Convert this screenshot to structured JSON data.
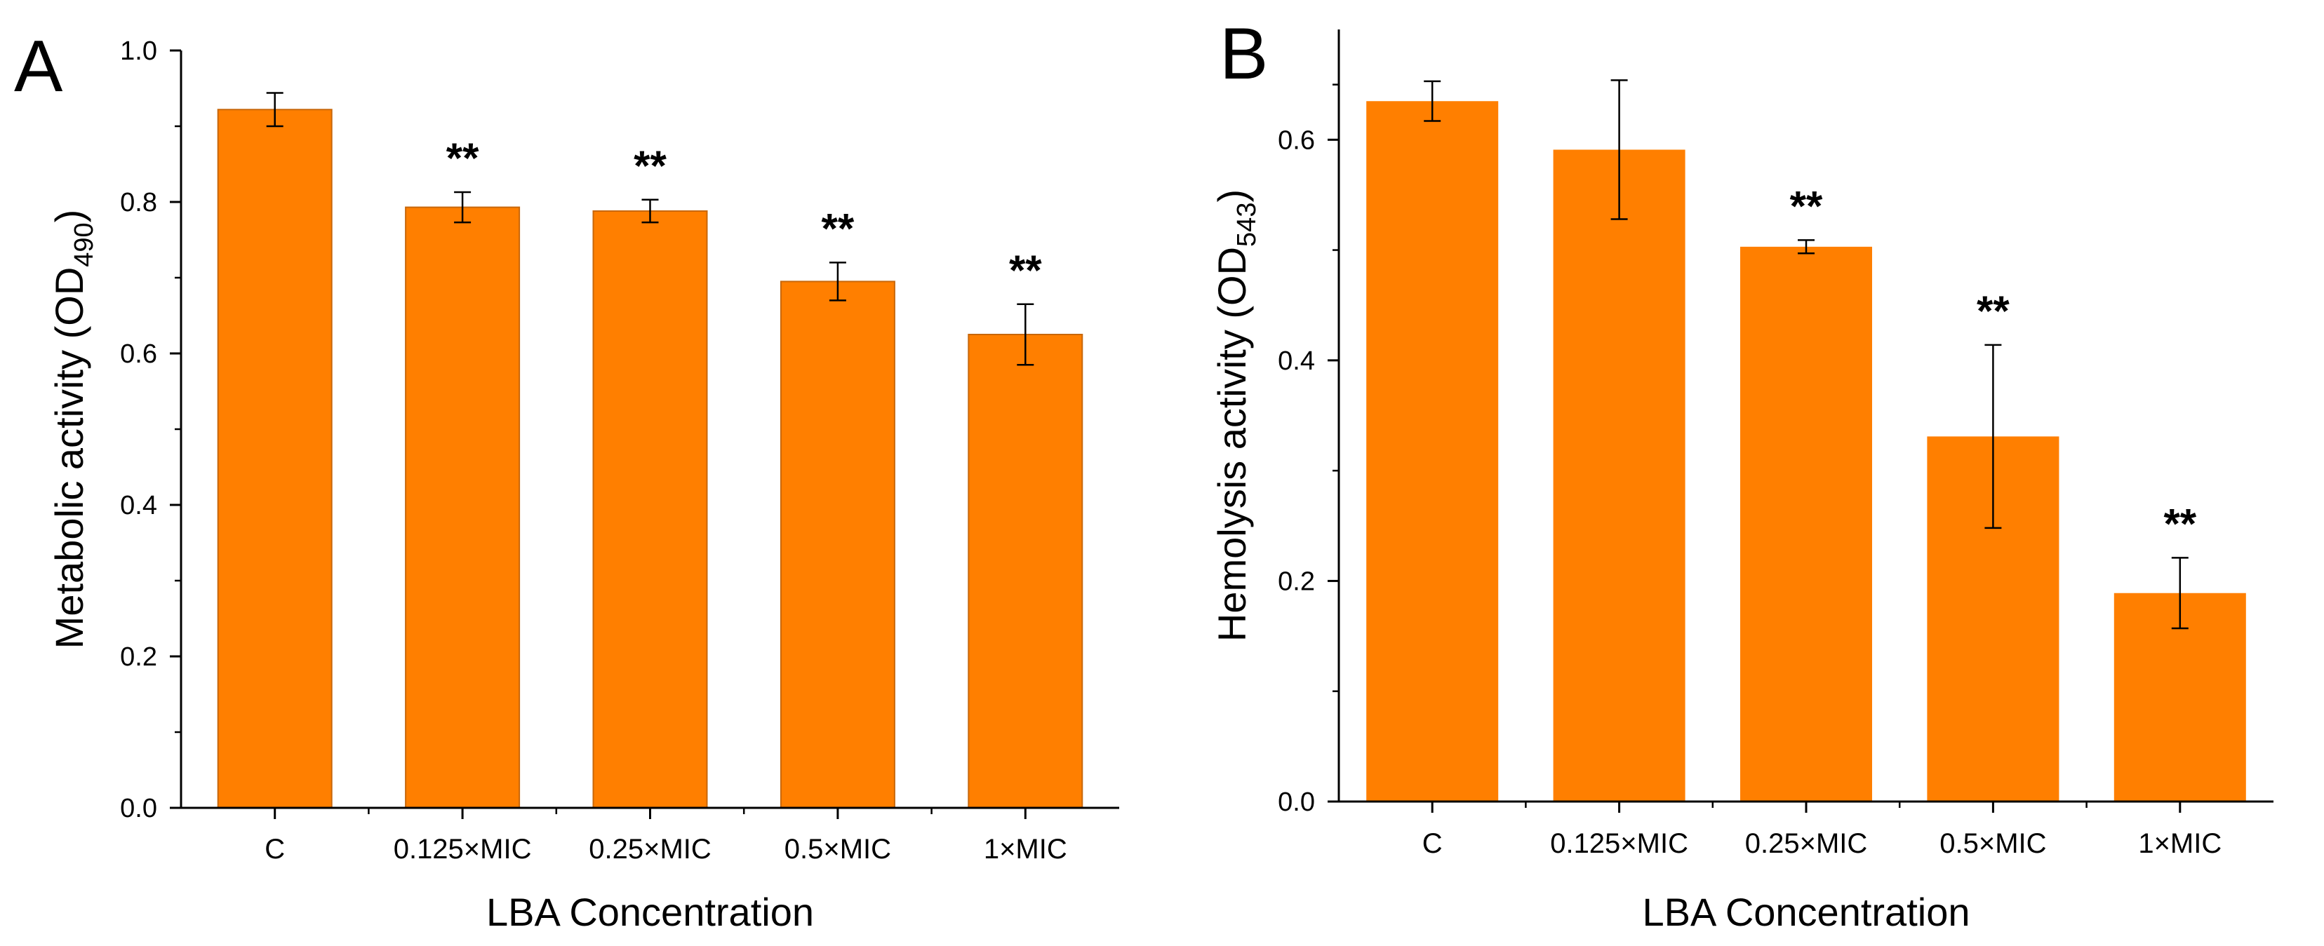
{
  "figure": {
    "background": "#ffffff",
    "bar_color": "#ff7f00",
    "bar_edge_color": "#c8670a"
  },
  "chart_data": [
    {
      "type": "bar",
      "panel_label": "A",
      "categories": [
        "C",
        "0.125×MIC",
        "0.25×MIC",
        "0.5×MIC",
        "1×MIC"
      ],
      "values": [
        0.922,
        0.793,
        0.788,
        0.695,
        0.625
      ],
      "errors": [
        0.022,
        0.02,
        0.015,
        0.025,
        0.04
      ],
      "significance": [
        "",
        "**",
        "**",
        "**",
        "**"
      ],
      "ylabel_main": "Metabolic activity (OD",
      "ylabel_sub": "490",
      "ylabel_end": ")",
      "xlabel": "LBA Concentration",
      "ylim": [
        0,
        1.0
      ],
      "yticks": [
        0.0,
        0.2,
        0.4,
        0.6,
        0.8,
        1.0
      ],
      "ytick_labels": [
        "0.0",
        "0.2",
        "0.4",
        "0.6",
        "0.8",
        "1.0"
      ],
      "bar_outline": true
    },
    {
      "type": "bar",
      "panel_label": "B",
      "categories": [
        "C",
        "0.125×MIC",
        "0.25×MIC",
        "0.5×MIC",
        "1×MIC"
      ],
      "values": [
        0.635,
        0.591,
        0.503,
        0.331,
        0.189
      ],
      "errors": [
        0.018,
        0.063,
        0.006,
        0.083,
        0.032
      ],
      "significance": [
        "",
        "",
        "**",
        "**",
        "**"
      ],
      "ylabel_main": "Hemolysis activity (OD",
      "ylabel_sub": "543",
      "ylabel_end": ")",
      "xlabel": "LBA Concentration",
      "ylim": [
        0,
        0.7
      ],
      "yticks": [
        0.0,
        0.2,
        0.4,
        0.6
      ],
      "ytick_labels": [
        "0.0",
        "0.2",
        "0.4",
        "0.6"
      ],
      "bar_outline": false
    }
  ]
}
